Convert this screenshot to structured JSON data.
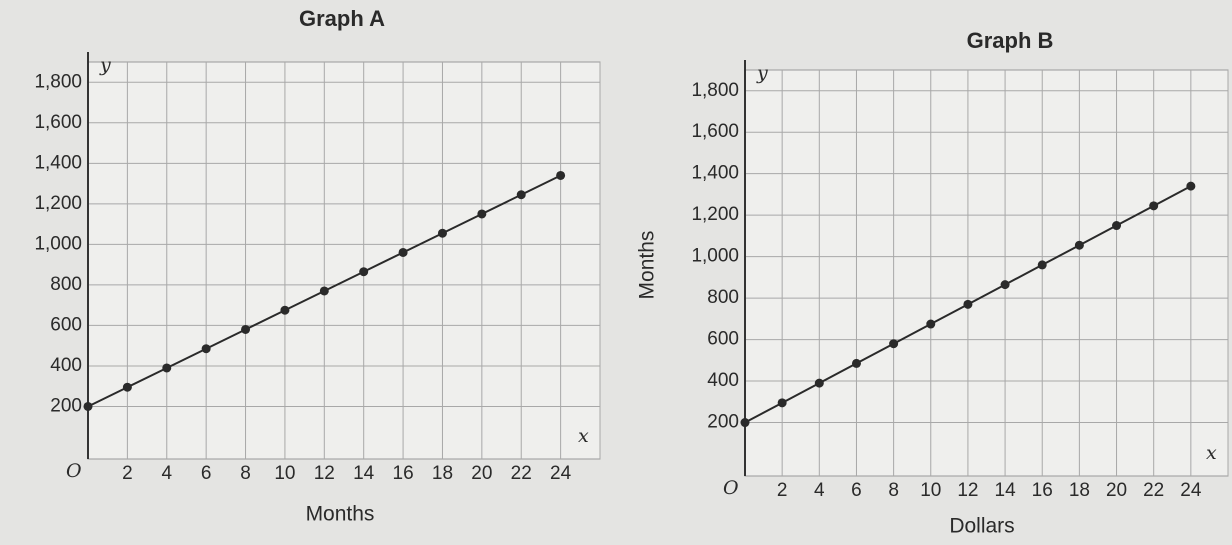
{
  "chart_data": [
    {
      "type": "line",
      "title": "Graph A",
      "x_label": "Months",
      "x_symbol": "x",
      "y_symbol": "y",
      "origin": "O",
      "x": [
        0,
        2,
        4,
        6,
        8,
        10,
        12,
        14,
        16,
        18,
        20,
        22,
        24
      ],
      "series": [
        {
          "color": "#2a2a2a",
          "values": [
            200,
            295,
            390,
            485,
            580,
            675,
            770,
            865,
            960,
            1055,
            1150,
            1245,
            1340
          ]
        }
      ],
      "xlim": [
        0,
        26
      ],
      "xticks": [
        2,
        4,
        6,
        8,
        10,
        12,
        14,
        16,
        18,
        20,
        22,
        24
      ],
      "ylim": [
        0,
        1900
      ],
      "yticks": [
        200,
        400,
        600,
        800,
        {
          "value": 1000,
          "label": "1,000"
        },
        {
          "value": 1200,
          "label": "1,200"
        },
        {
          "value": 1400,
          "label": "1,400"
        },
        {
          "value": 1600,
          "label": "1,600"
        },
        {
          "value": 1800,
          "label": "1,800"
        }
      ],
      "grid": true
    },
    {
      "type": "line",
      "title": "Graph B",
      "x_label": "Dollars",
      "y_label": "Months",
      "x_symbol": "x",
      "y_symbol": "y",
      "origin": "O",
      "x": [
        0,
        2,
        4,
        6,
        8,
        10,
        12,
        14,
        16,
        18,
        20,
        22,
        24
      ],
      "series": [
        {
          "color": "#2a2a2a",
          "values": [
            200,
            295,
            390,
            485,
            580,
            675,
            770,
            865,
            960,
            1055,
            1150,
            1245,
            1340
          ]
        }
      ],
      "xlim": [
        0,
        26
      ],
      "xticks": [
        2,
        4,
        6,
        8,
        10,
        12,
        14,
        16,
        18,
        20,
        22,
        24
      ],
      "ylim": [
        0,
        1900
      ],
      "yticks": [
        200,
        400,
        600,
        800,
        {
          "value": 1000,
          "label": "1,000"
        },
        {
          "value": 1200,
          "label": "1,200"
        },
        {
          "value": 1400,
          "label": "1,400"
        },
        {
          "value": 1600,
          "label": "1,600"
        },
        {
          "value": 1800,
          "label": "1,800"
        }
      ],
      "grid": true
    }
  ]
}
